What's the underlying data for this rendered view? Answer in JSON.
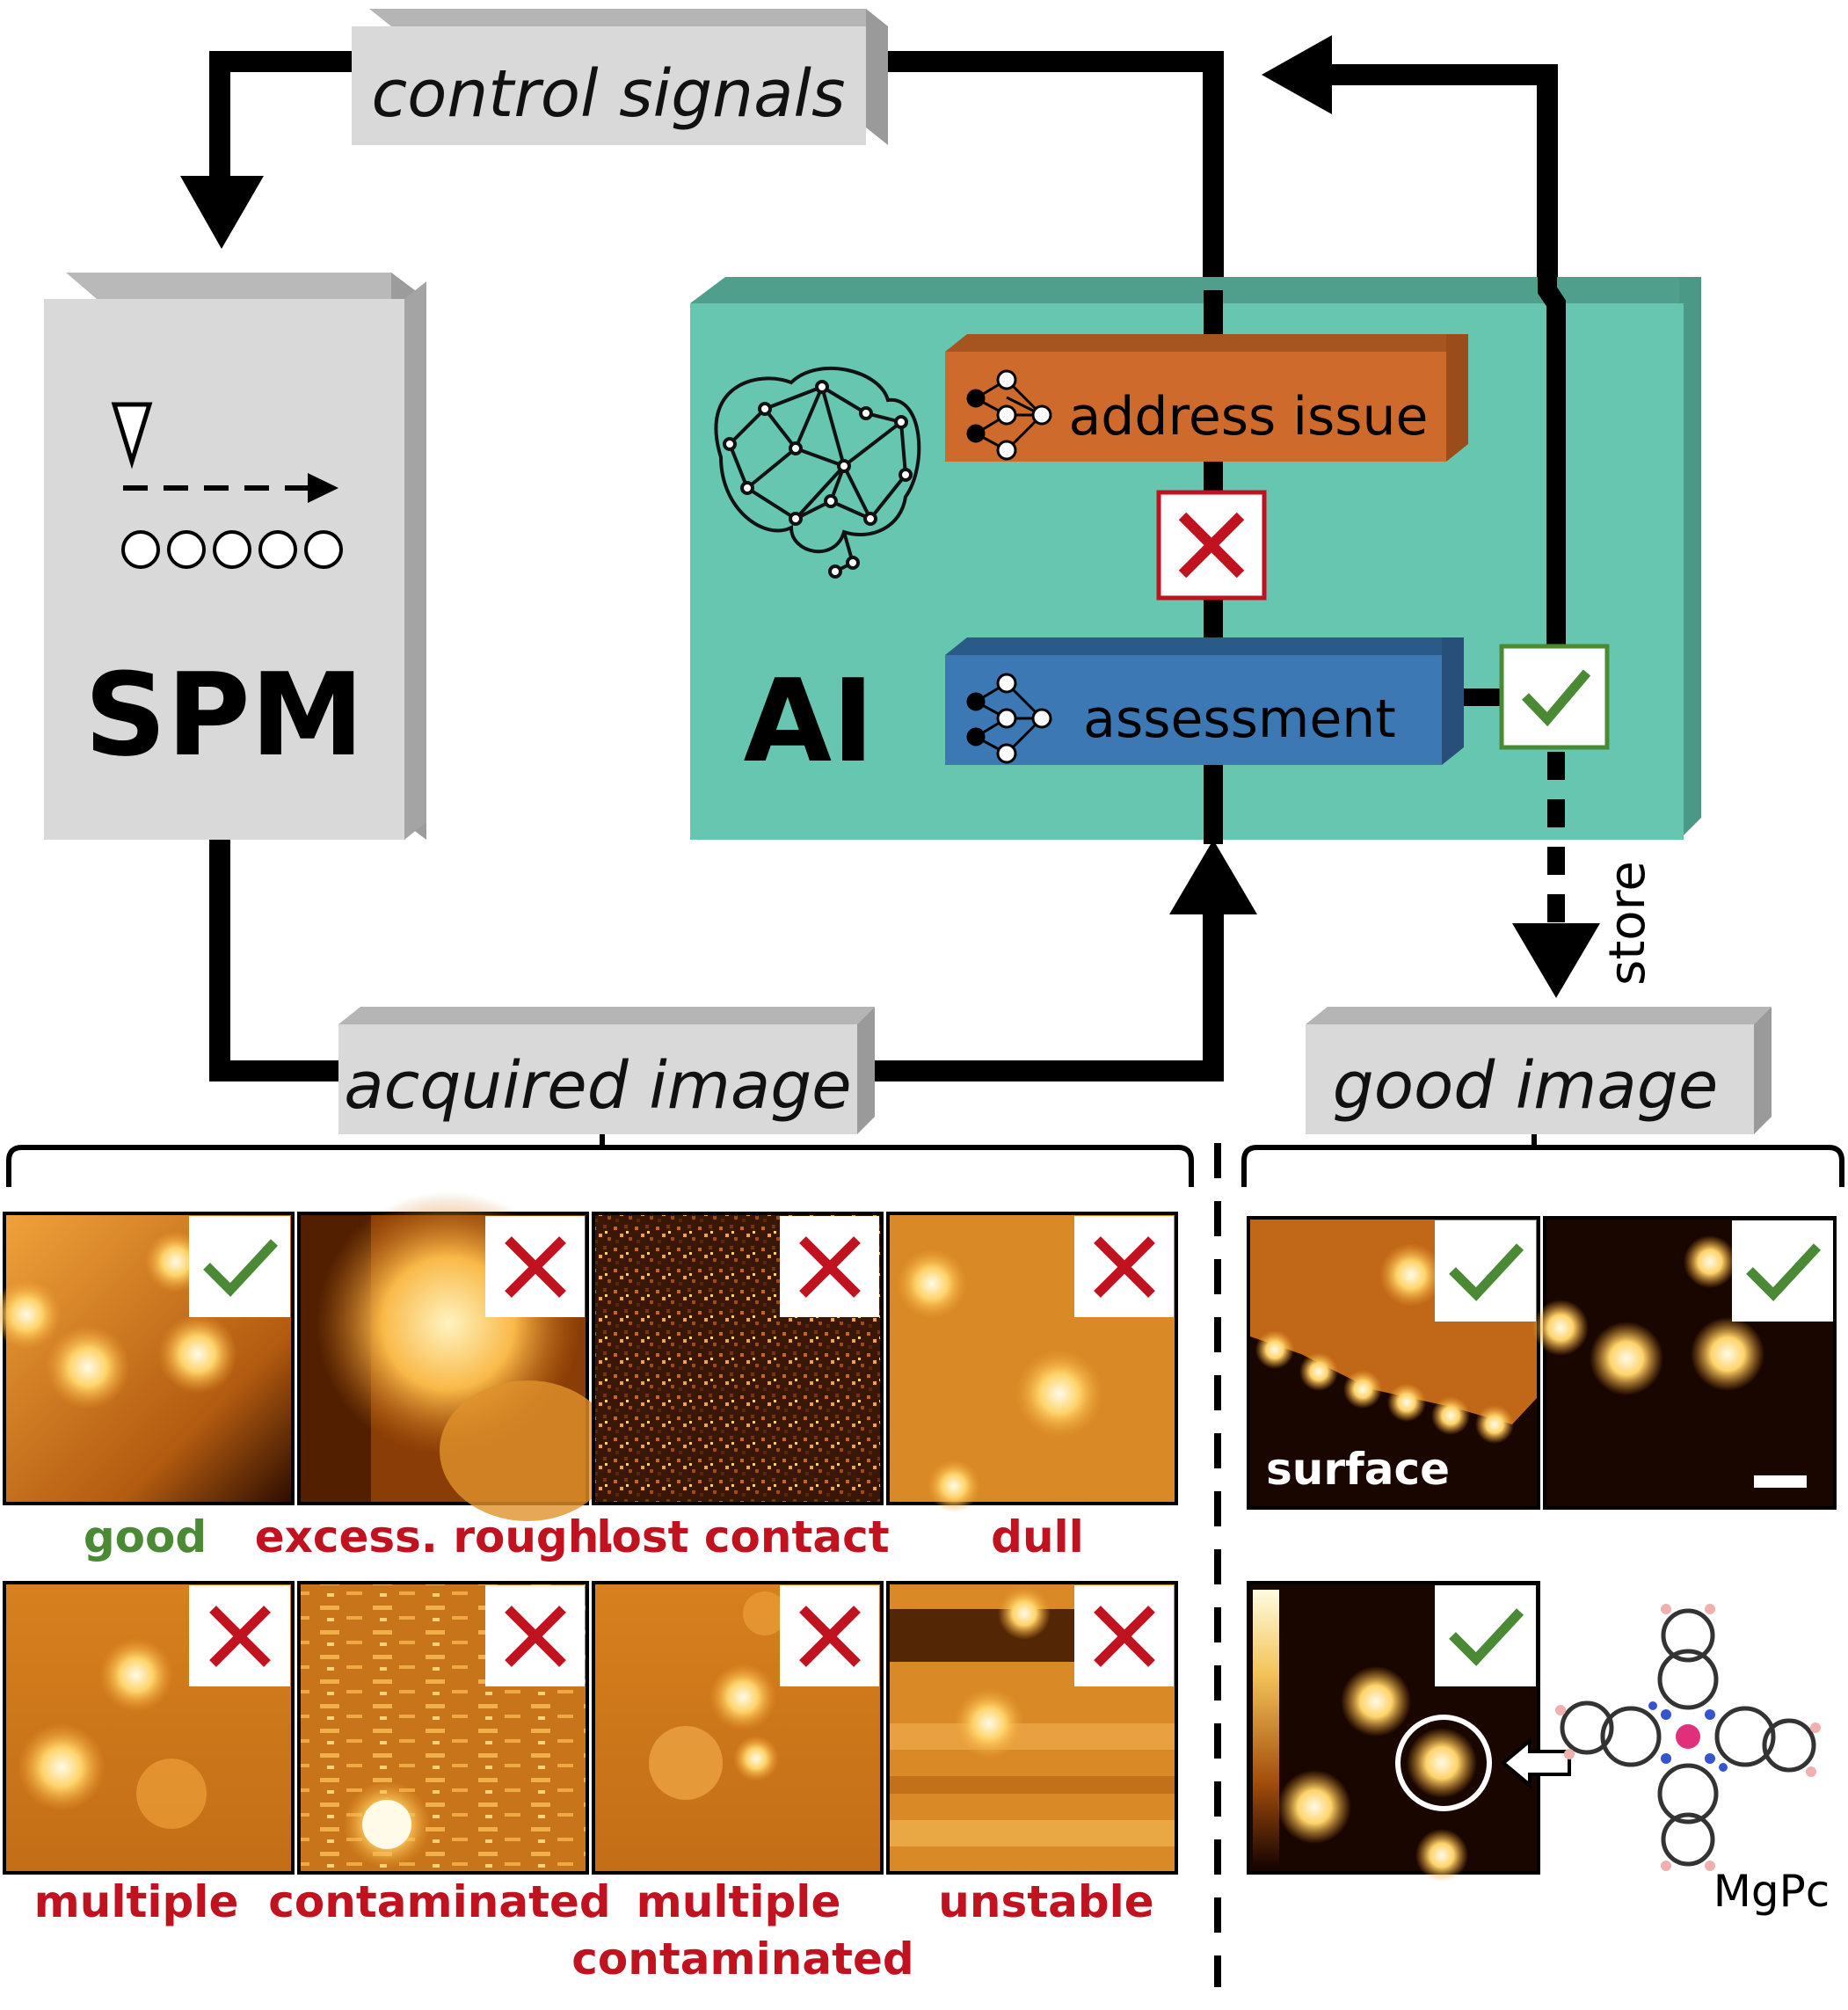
{
  "flow": {
    "control_signals": "control signals",
    "acquired_image": "acquired image",
    "good_image": "good image",
    "store": "store"
  },
  "spm": {
    "label": "SPM"
  },
  "ai": {
    "label": "AI",
    "address_issue": "address issue",
    "assessment": "assessment"
  },
  "captions": {
    "good": "good",
    "excess_rough": "excess. rough.",
    "lost_contact": "lost contact",
    "dull": "dull",
    "multiple": "multiple",
    "contaminated": "contaminated",
    "multiple_contaminated_1": "multiple",
    "multiple_contaminated_2": "contaminated",
    "unstable": "unstable"
  },
  "good_panel": {
    "surface": "surface",
    "molecule": "MgPc"
  },
  "colors": {
    "ai_box": "#66c6b0",
    "address_bar": "#cd6a2c",
    "assessment_bar": "#3c78b4",
    "reject_red": "#c1121f",
    "accept_green": "#4a8a34",
    "spm_gray": "#d9d9d9"
  }
}
